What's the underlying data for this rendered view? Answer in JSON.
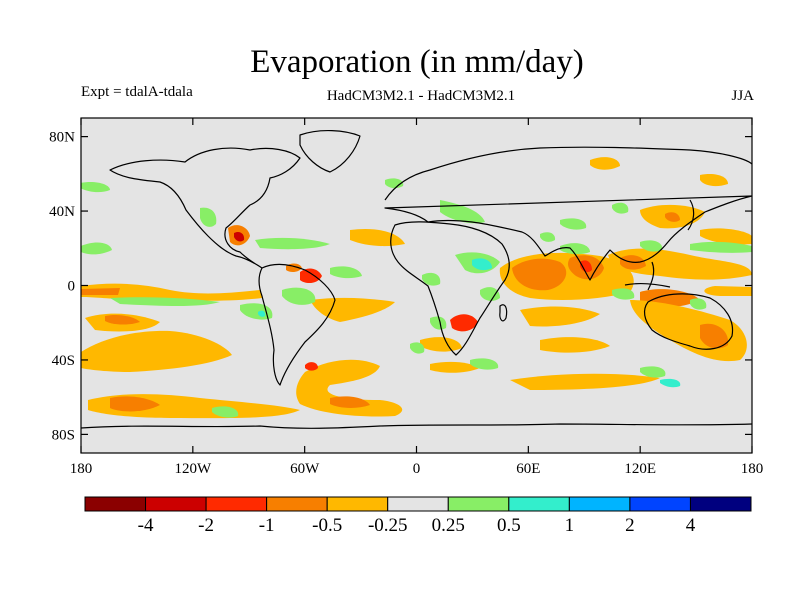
{
  "title": "Evaporation (in mm/day)",
  "left_subtitle": "Expt = tdalA-tdala",
  "center_subtitle": "HadCM3M2.1 - HadCM3M2.1",
  "right_subtitle": "JJA",
  "axes": {
    "lat_ticks": [
      {
        "value": 80,
        "label": "80N"
      },
      {
        "value": 40,
        "label": "40N"
      },
      {
        "value": 0,
        "label": "0"
      },
      {
        "value": -40,
        "label": "40S"
      },
      {
        "value": -80,
        "label": "80S"
      }
    ],
    "lon_ticks": [
      {
        "value": -180,
        "label": "180"
      },
      {
        "value": -120,
        "label": "120W"
      },
      {
        "value": -60,
        "label": "60W"
      },
      {
        "value": 0,
        "label": "0"
      },
      {
        "value": 60,
        "label": "60E"
      },
      {
        "value": 120,
        "label": "120E"
      },
      {
        "value": 180,
        "label": "180"
      }
    ],
    "lon_range": [
      -180,
      180
    ],
    "lat_range": [
      -90,
      90
    ]
  },
  "colorbar": {
    "colors": [
      "#8b0000",
      "#cc0000",
      "#ff2a00",
      "#f77f00",
      "#ffb800",
      "#e4e4e4",
      "#88ee66",
      "#33eecc",
      "#00b4ff",
      "#0044ff",
      "#00007f"
    ],
    "labels": [
      "-4",
      "-2",
      "-1",
      "-0.5",
      "-0.25",
      "0.25",
      "0.5",
      "1",
      "2",
      "4"
    ]
  },
  "colors": {
    "background_field": "#e4e4e4",
    "coast": "#000000"
  }
}
